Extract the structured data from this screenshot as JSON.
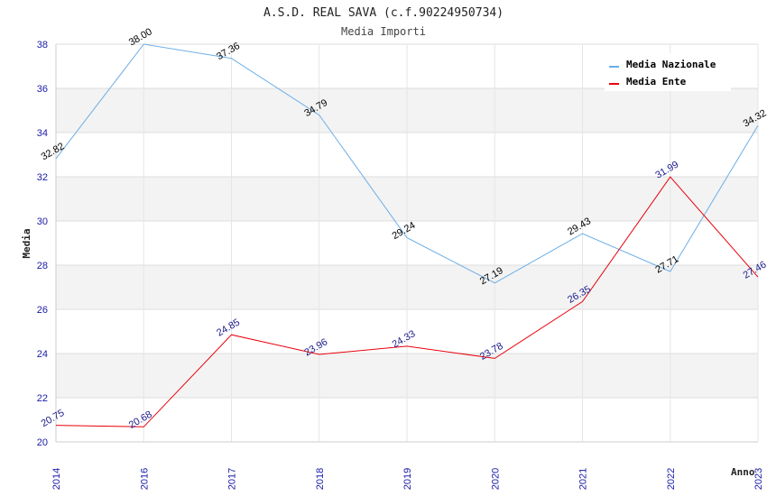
{
  "chart_data": {
    "type": "line",
    "title": "A.S.D. REAL SAVA (c.f.90224950734)",
    "subtitle": "Media Importi",
    "ylabel": "Media",
    "xlabel": "Anno",
    "categories": [
      "2014",
      "2016",
      "2017",
      "2018",
      "2019",
      "2020",
      "2021",
      "2022",
      "2023"
    ],
    "ylim": [
      20,
      38
    ],
    "yticks": [
      20,
      22,
      24,
      26,
      28,
      30,
      32,
      34,
      36,
      38
    ],
    "grid": true,
    "legend_position": "top-right",
    "series": [
      {
        "name": "Media Nazionale",
        "color": "#6aaee8",
        "label_color": "#000000",
        "values": [
          32.82,
          38.0,
          37.36,
          34.79,
          29.24,
          27.19,
          29.43,
          27.71,
          34.32
        ],
        "labels": [
          "32.82",
          "38.00",
          "37.36",
          "34.79",
          "29.24",
          "27.19",
          "29.43",
          "27.71",
          "34.32"
        ]
      },
      {
        "name": "Media Ente",
        "color": "#e8000b",
        "label_color": "#1a1a8c",
        "values": [
          20.75,
          20.68,
          24.85,
          23.96,
          24.33,
          23.78,
          26.35,
          31.99,
          27.46
        ],
        "labels": [
          "20.75",
          "20.68",
          "24.85",
          "23.96",
          "24.33",
          "23.78",
          "26.35",
          "31.99",
          "27.46"
        ]
      }
    ]
  }
}
